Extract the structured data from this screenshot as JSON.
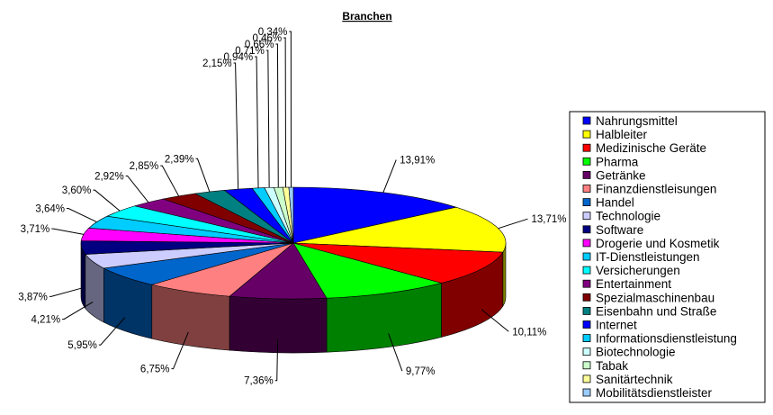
{
  "chart_data": {
    "type": "pie",
    "style": "3d",
    "title": "Branchen",
    "legend_position": "right",
    "slices": [
      {
        "name": "Nahrungsmittel",
        "value": 13.91,
        "label": "13,91%",
        "color": "#0000FF"
      },
      {
        "name": "Halbleiter",
        "value": 13.71,
        "label": "13,71%",
        "color": "#FFFF00"
      },
      {
        "name": "Medizinische Geräte",
        "value": 10.11,
        "label": "10,11%",
        "color": "#FF0000"
      },
      {
        "name": "Pharma",
        "value": 9.77,
        "label": "9,77%",
        "color": "#00FF00"
      },
      {
        "name": "Getränke",
        "value": 7.36,
        "label": "7,36%",
        "color": "#660066"
      },
      {
        "name": "Finanzdienstleisungen",
        "value": 6.75,
        "label": "6,75%",
        "color": "#FF8080"
      },
      {
        "name": "Handel",
        "value": 5.95,
        "label": "5,95%",
        "color": "#0066CC"
      },
      {
        "name": "Technologie",
        "value": 4.21,
        "label": "4,21%",
        "color": "#CCCCFF"
      },
      {
        "name": "Software",
        "value": 3.87,
        "label": "3,87%",
        "color": "#000080"
      },
      {
        "name": "Drogerie und Kosmetik",
        "value": 3.71,
        "label": "3,71%",
        "color": "#FF00FF"
      },
      {
        "name": "IT-Dienstleistungen",
        "value": 3.64,
        "label": "3,64%",
        "color": "#00CCFF"
      },
      {
        "name": "Versicherungen",
        "value": 3.6,
        "label": "3,60%",
        "color": "#00FFFF"
      },
      {
        "name": "Entertainment",
        "value": 2.92,
        "label": "2,92%",
        "color": "#800080"
      },
      {
        "name": "Spezialmaschinenbau",
        "value": 2.85,
        "label": "2,85%",
        "color": "#800000"
      },
      {
        "name": "Eisenbahn und Straße",
        "value": 2.39,
        "label": "2,39%",
        "color": "#008080"
      },
      {
        "name": "Internet",
        "value": 2.15,
        "label": "2,15%",
        "color": "#0000FF"
      },
      {
        "name": "Informationsdienstleistung",
        "value": 0.94,
        "label": "0,94%",
        "color": "#00CCFF"
      },
      {
        "name": "Biotechnologie",
        "value": 0.71,
        "label": "0,71%",
        "color": "#CCFFFF"
      },
      {
        "name": "Tabak",
        "value": 0.66,
        "label": "0,66%",
        "color": "#CCFFCC"
      },
      {
        "name": "Sanitärtechnik",
        "value": 0.46,
        "label": "0,46%",
        "color": "#FFFF99"
      },
      {
        "name": "Mobilitätsdienstleister",
        "value": 0.34,
        "label": "0,34%",
        "color": "#99CCFF"
      }
    ]
  }
}
